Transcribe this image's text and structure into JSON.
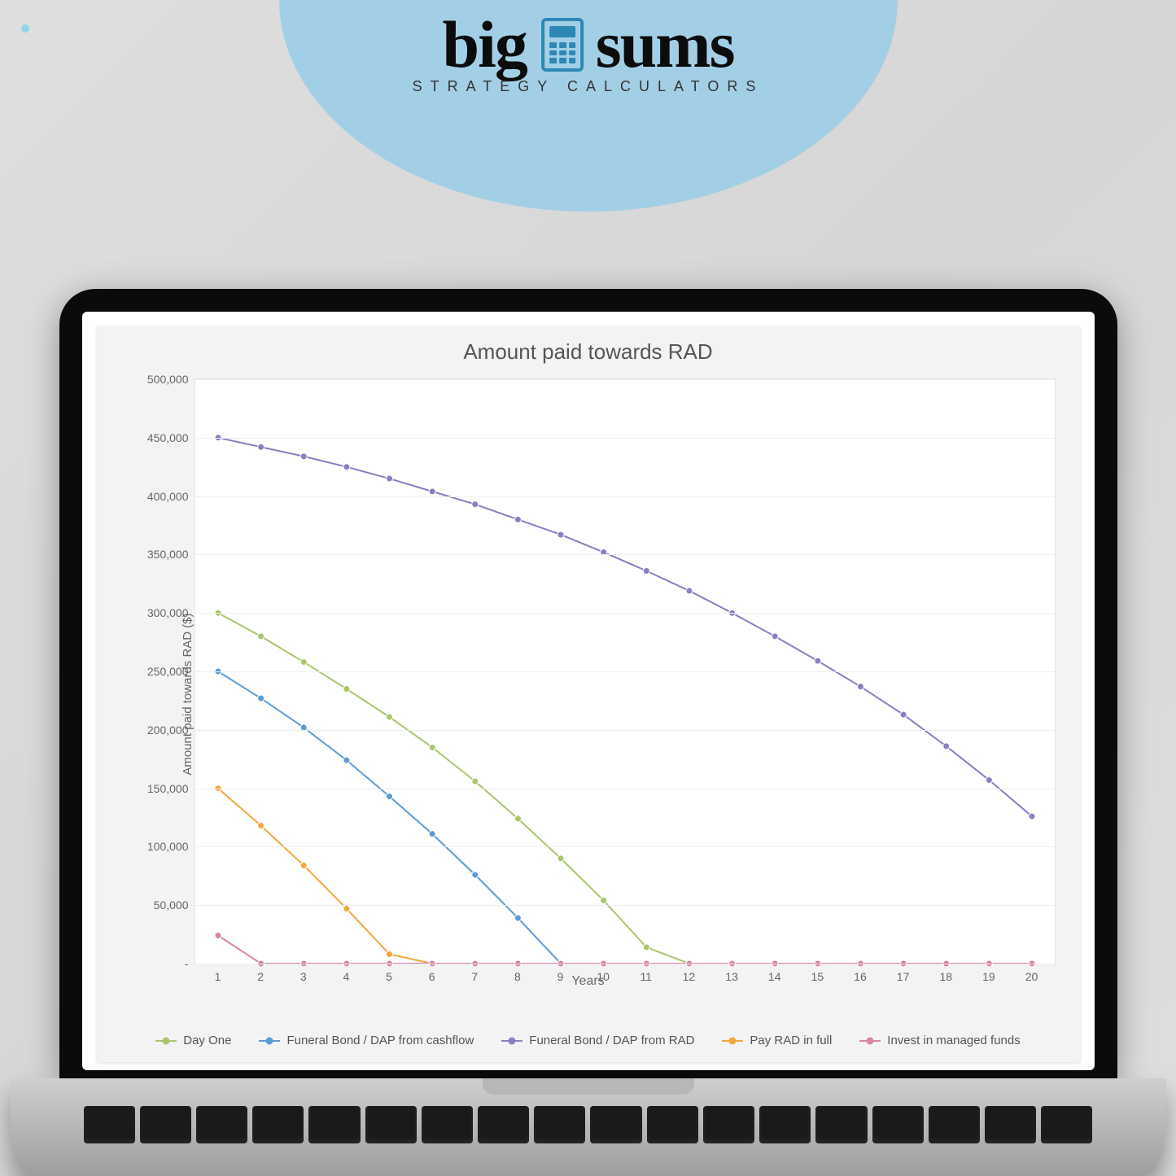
{
  "brand": {
    "word1": "big",
    "word2": "sums",
    "tagline": "STRATEGY CALCULATORS",
    "blob_color": "#a3cfe6",
    "text_color": "#0c0c0c",
    "calc_color": "#2d88b5"
  },
  "chart": {
    "type": "line",
    "title": "Amount paid towards RAD",
    "title_fontsize": 26,
    "title_color": "#555555",
    "xlabel": "Years",
    "ylabel": "Amount paid towards RAD ($)",
    "label_fontsize": 15,
    "label_color": "#666666",
    "background_color": "#f3f3f3",
    "plot_background": "#ffffff",
    "grid_color": "#eeeeee",
    "border_color": "#e4e4e4",
    "xlim": [
      1,
      20
    ],
    "ylim": [
      0,
      500000
    ],
    "ytick_step": 50000,
    "ytick_labels": [
      "-",
      "50,000",
      "100,000",
      "150,000",
      "200,000",
      "250,000",
      "300,000",
      "350,000",
      "400,000",
      "450,000",
      "500,000"
    ],
    "x_categories": [
      1,
      2,
      3,
      4,
      5,
      6,
      7,
      8,
      9,
      10,
      11,
      12,
      13,
      14,
      15,
      16,
      17,
      18,
      19,
      20
    ],
    "line_width": 2,
    "marker": "circle",
    "marker_size": 8,
    "series": [
      {
        "id": "day_one",
        "label": "Day One",
        "color": "#a9c66b",
        "values": [
          300000,
          280000,
          258000,
          235000,
          211000,
          185000,
          156000,
          124000,
          90000,
          54000,
          14000,
          0,
          0,
          0,
          0,
          0,
          0,
          0,
          0,
          0
        ]
      },
      {
        "id": "fb_cashflow",
        "label": "Funeral Bond / DAP from cashflow",
        "color": "#5b9bd5",
        "values": [
          250000,
          227000,
          202000,
          174000,
          143000,
          111000,
          76000,
          39000,
          0,
          0,
          0,
          0,
          0,
          0,
          0,
          0,
          0,
          0,
          0,
          0
        ]
      },
      {
        "id": "fb_rad",
        "label": "Funeral Bond / DAP from RAD",
        "color": "#8e7cc3",
        "values": [
          450000,
          442000,
          434000,
          425000,
          415000,
          404000,
          393000,
          380000,
          367000,
          352000,
          336000,
          319000,
          300000,
          280000,
          259000,
          237000,
          213000,
          186000,
          157000,
          126000
        ]
      },
      {
        "id": "pay_full",
        "label": "Pay RAD in full",
        "color": "#f4a63a",
        "values": [
          150000,
          118000,
          84000,
          47000,
          8000,
          0,
          0,
          0,
          0,
          0,
          0,
          0,
          0,
          0,
          0,
          0,
          0,
          0,
          0,
          0
        ]
      },
      {
        "id": "managed",
        "label": "Invest in managed funds",
        "color": "#d983a6",
        "values": [
          24000,
          0,
          0,
          0,
          0,
          0,
          0,
          0,
          0,
          0,
          0,
          0,
          0,
          0,
          0,
          0,
          0,
          0,
          0,
          0
        ]
      }
    ]
  }
}
